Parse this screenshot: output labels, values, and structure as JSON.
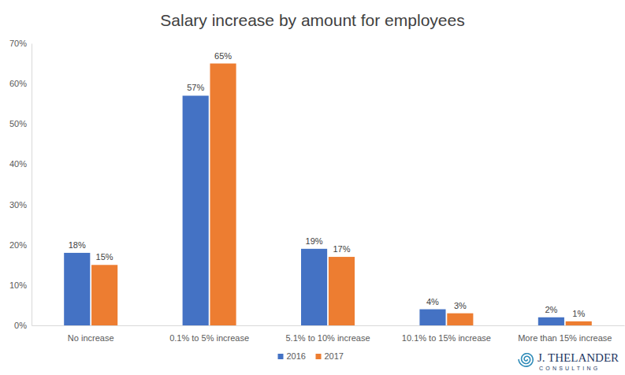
{
  "chart_data": {
    "type": "bar",
    "title": "Salary increase by amount for employees",
    "categories": [
      "No increase",
      "0.1% to 5% increase",
      "5.1% to 10% increase",
      "10.1% to 15% increase",
      "More than 15% increase"
    ],
    "series": [
      {
        "name": "2016",
        "color": "#4472c4",
        "values": [
          18,
          57,
          19,
          4,
          2
        ],
        "value_labels": [
          "18%",
          "57%",
          "19%",
          "4%",
          "2%"
        ]
      },
      {
        "name": "2017",
        "color": "#ed7d31",
        "values": [
          15,
          65,
          17,
          3,
          1
        ],
        "value_labels": [
          "15%",
          "65%",
          "17%",
          "3%",
          "1%"
        ]
      }
    ],
    "ylim": [
      0,
      70
    ],
    "yticks": [
      {
        "value": 0,
        "label": "0%"
      },
      {
        "value": 10,
        "label": "10%"
      },
      {
        "value": 20,
        "label": "20%"
      },
      {
        "value": 30,
        "label": "30%"
      },
      {
        "value": 40,
        "label": "40%"
      },
      {
        "value": 50,
        "label": "50%"
      },
      {
        "value": 60,
        "label": "60%"
      },
      {
        "value": 70,
        "label": "70%"
      }
    ],
    "grid": false,
    "legend": "bottom",
    "data_labels": true,
    "annotations": [
      "J. THELANDER",
      "CONSULTING"
    ]
  }
}
